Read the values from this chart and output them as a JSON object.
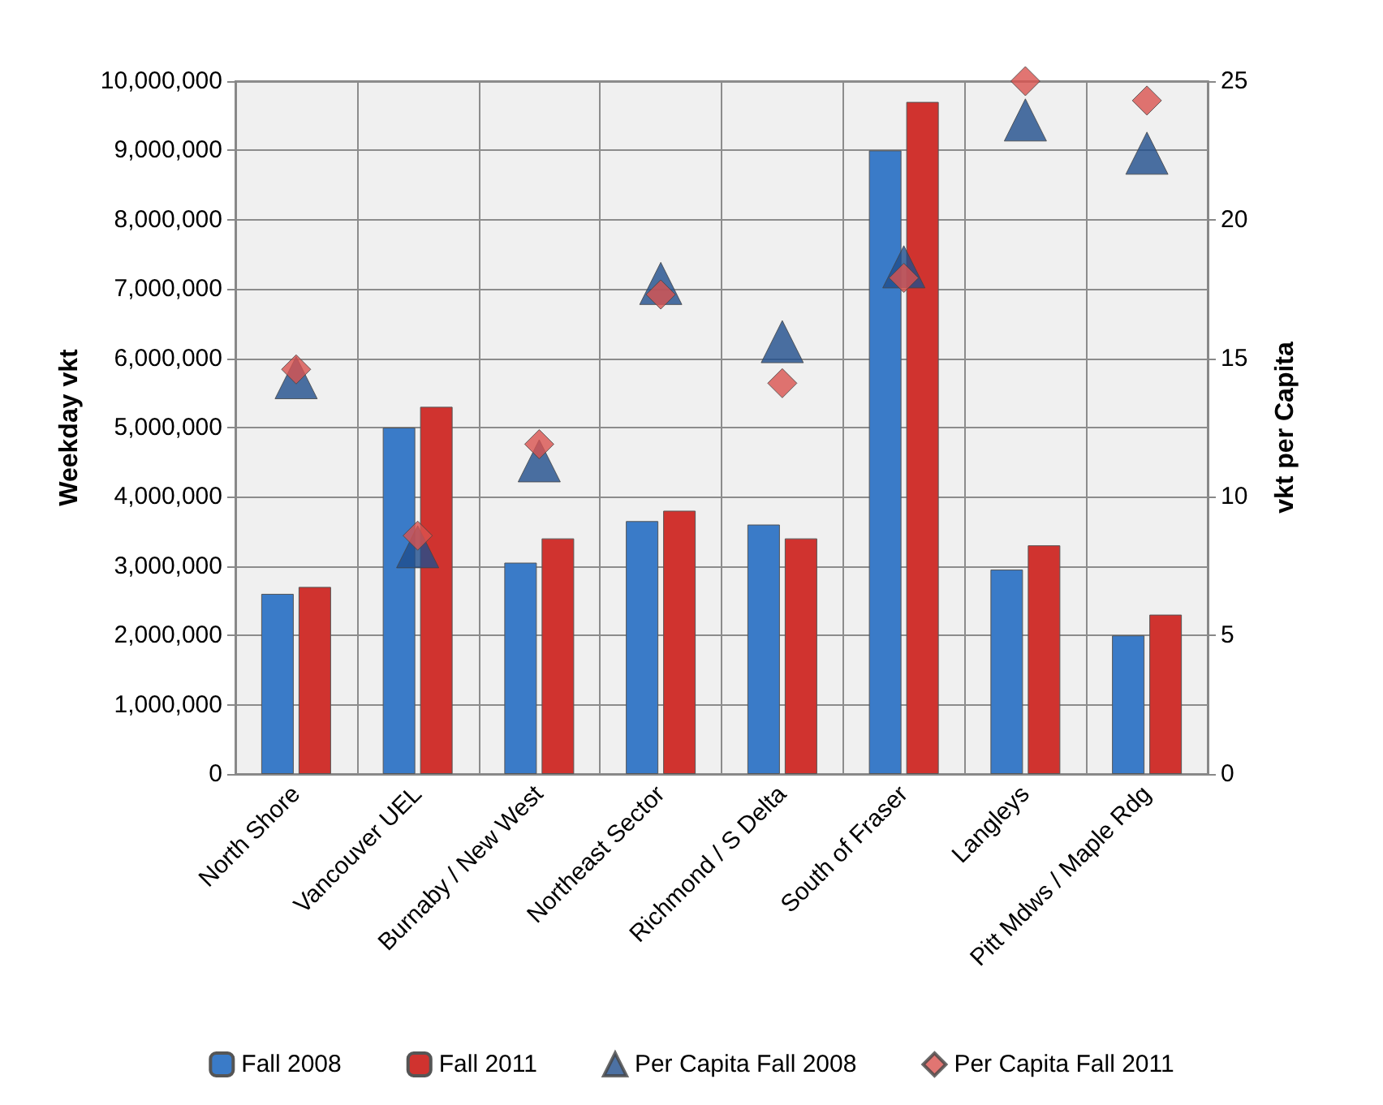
{
  "chart_data": {
    "type": "bar",
    "ylabel": "Weekday vkt",
    "y2label": "vkt per Capita",
    "categories": [
      "North Shore",
      "Vancouver UEL",
      "Burnaby / New West",
      "Northeast Sector",
      "Richmond / S Delta",
      "South of Fraser",
      "Langleys",
      "Pitt Mdws / Maple Rdg"
    ],
    "series": [
      {
        "name": "Fall 2008",
        "color": "#3a7bc8",
        "values": [
          2600000,
          5000000,
          3050000,
          3650000,
          3600000,
          9000000,
          2950000,
          2000000
        ]
      },
      {
        "name": "Fall 2011",
        "color": "#d0332f",
        "values": [
          2700000,
          5300000,
          3400000,
          3800000,
          3400000,
          9700000,
          3300000,
          2300000
        ]
      },
      {
        "name": "Per Capita Fall 2008",
        "type": "scatter",
        "axis": "y2",
        "marker": "triangle",
        "color": "#1f4e8c",
        "x": [
          "North Shore",
          "Vancouver UEL",
          "Burnaby / New West",
          "Northeast Sector",
          "Richmond / S Delta",
          "South of Fraser",
          "Langleys",
          "Pitt Mdws / Maple Rdg"
        ],
        "values": [
          14.3,
          8.2,
          11.3,
          17.7,
          15.6,
          18.3,
          23.6,
          22.4
        ]
      },
      {
        "name": "Per Capita Fall 2011",
        "type": "scatter",
        "axis": "y2",
        "marker": "diamond",
        "color": "#d9534f",
        "x": [
          "North Shore",
          "Vancouver UEL",
          "Burnaby / New West",
          "Northeast Sector",
          "Richmond / S Delta",
          "South of Fraser",
          "Langleys",
          "Pitt Mdws / Maple Rdg"
        ],
        "values": [
          14.6,
          8.6,
          11.9,
          17.3,
          14.1,
          17.9,
          25,
          24.3
        ]
      }
    ],
    "ylim": [
      0,
      10000000
    ],
    "yticks": [
      0,
      {
        "value": 1000000,
        "label": "1,000,000"
      },
      {
        "value": 2000000,
        "label": "2,000,000"
      },
      {
        "value": 3000000,
        "label": "3,000,000"
      },
      {
        "value": 4000000,
        "label": "4,000,000"
      },
      {
        "value": 5000000,
        "label": "5,000,000"
      },
      {
        "value": 6000000,
        "label": "6,000,000"
      },
      {
        "value": 7000000,
        "label": "7,000,000"
      },
      {
        "value": 8000000,
        "label": "8,000,000"
      },
      {
        "value": 9000000,
        "label": "9,000,000"
      },
      {
        "value": 10000000,
        "label": "10,000,000"
      }
    ],
    "y2lim": [
      0,
      25
    ],
    "y2ticks": [
      0,
      5,
      10,
      15,
      20,
      25
    ],
    "grid": true,
    "legend": "bottom"
  }
}
